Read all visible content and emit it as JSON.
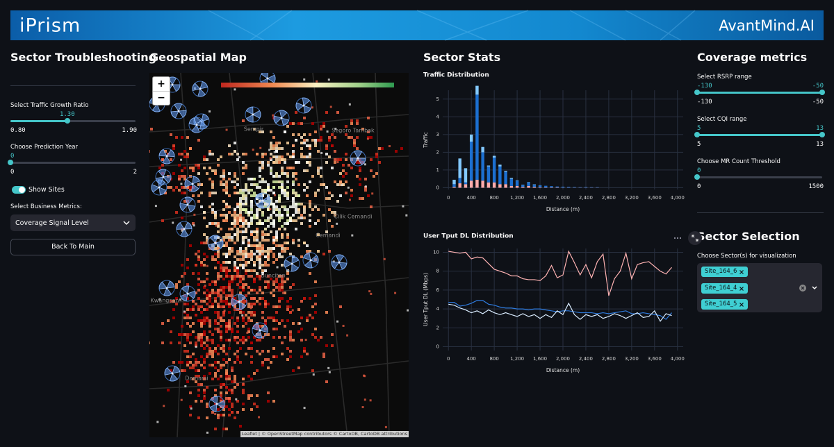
{
  "header": {
    "logo": "iPrism",
    "brand": "AvantMind.AI"
  },
  "sidebar": {
    "title": "Sector Troubleshooting",
    "growth_slider": {
      "label": "Select Traffic Growth Ratio",
      "value": "1.30",
      "min": "0.80",
      "max": "1.90"
    },
    "year_slider": {
      "label": "Choose Prediction Year",
      "value": 0,
      "min": 0,
      "max": 2
    },
    "toggle": {
      "label": "Show Sites",
      "on": true
    },
    "metrics": {
      "label": "Select Business Metrics:",
      "selected": "Coverage Signal Level"
    },
    "button": "Back To Main"
  },
  "map": {
    "title": "Geospatial Map",
    "zoom_in": "+",
    "zoom_out": "−",
    "places": [
      "Sempir",
      "Segoro Tambak",
      "Cilik Cemandi",
      "Cemandi",
      "Buncitan",
      "Kwangsan",
      "Damarsi"
    ],
    "attribution": "Leaflet | © OpenStreetMap contributors © CartoDB, CartoDB attributions"
  },
  "stats": {
    "title": "Sector Stats"
  },
  "chart_data": [
    {
      "type": "bar",
      "stacked": true,
      "title": "Traffic Distribution",
      "x_label": "Distance (m)",
      "y_label": "Traffic",
      "grid": true,
      "x": [
        100,
        200,
        300,
        400,
        500,
        600,
        700,
        800,
        900,
        1000,
        1100,
        1200,
        1300,
        1400,
        1500,
        1600,
        1700,
        1800,
        1900,
        2000,
        2100,
        2200,
        2300,
        2400,
        2500,
        2600
      ],
      "series": [
        {
          "color": "#ffabab",
          "values": [
            0.05,
            0.25,
            0.2,
            0.4,
            0.45,
            0.4,
            0.3,
            0.3,
            0.2,
            0.2,
            0.1,
            0.1,
            0.05,
            0.1,
            0.05,
            0.03,
            0.02,
            0.02,
            0.02,
            0.01,
            0.01,
            0.01,
            0.01,
            0.01,
            0.01,
            0.01
          ]
        },
        {
          "color": "#1c6fd0",
          "values": [
            0.15,
            0.3,
            0.1,
            2.2,
            4.8,
            1.6,
            0.9,
            1.4,
            1.0,
            0.7,
            0.4,
            0.3,
            0.1,
            0.2,
            0.12,
            0.1,
            0.09,
            0.07,
            0.05,
            0.05,
            0.04,
            0.03,
            0.02,
            0.03,
            0.02,
            0.02
          ]
        },
        {
          "color": "#83c9ff",
          "values": [
            0.25,
            1.1,
            0.8,
            0.4,
            0.5,
            0.3,
            0.05,
            0.1,
            0.1,
            0.05,
            0.05,
            0.02,
            0.02,
            0.02,
            0.02,
            0.01,
            0,
            0,
            0,
            0,
            0,
            0,
            0,
            0,
            0,
            0
          ]
        }
      ],
      "xlim": [
        -100,
        4100
      ],
      "ylim": [
        -0.1,
        5.5
      ],
      "xticks": [
        0,
        400,
        800,
        {
          "value": 1200,
          "label": "1,200"
        },
        {
          "value": 1600,
          "label": "1,600"
        },
        {
          "value": 2000,
          "label": "2,000"
        },
        {
          "value": 2400,
          "label": "2,400"
        },
        {
          "value": 2800,
          "label": "2,800"
        },
        {
          "value": 3200,
          "label": "3,200"
        },
        {
          "value": 3600,
          "label": "3,600"
        },
        {
          "value": 4000,
          "label": "4,000"
        }
      ],
      "yticks": [
        0,
        1,
        2,
        3,
        4,
        5
      ]
    },
    {
      "type": "line",
      "title": "User Tput DL Distribution",
      "x_label": "Distance (m)",
      "y_label": "User Tput DL (Mbps)",
      "grid": true,
      "x": [
        0,
        100,
        200,
        300,
        400,
        500,
        600,
        700,
        800,
        900,
        1000,
        1100,
        1200,
        1300,
        1400,
        1500,
        1600,
        1700,
        1800,
        1900,
        2000,
        2100,
        2200,
        2300,
        2400,
        2500,
        2600,
        2700,
        2800,
        2900,
        3000,
        3100,
        3200,
        3300,
        3400,
        3500,
        3600,
        3700,
        3800,
        3900
      ],
      "series": [
        {
          "color": "#ffb3b3",
          "values": [
            10.1,
            10.0,
            9.9,
            10.0,
            9.3,
            9.5,
            9.4,
            8.8,
            8.2,
            8.0,
            7.8,
            7.5,
            7.5,
            7.2,
            7.1,
            7.1,
            7.0,
            7.5,
            8.6,
            7.3,
            7.6,
            10.1,
            8.9,
            7.6,
            8.7,
            7.3,
            9.0,
            9.8,
            5.4,
            7.2,
            8.0,
            9.9,
            7.2,
            8.7,
            8.9,
            9.0,
            8.5,
            8.0,
            7.7,
            8.4
          ]
        },
        {
          "color": "#2f7ce0",
          "values": [
            4.7,
            4.7,
            4.3,
            4.4,
            4.6,
            4.9,
            4.9,
            4.5,
            4.4,
            4.2,
            4.1,
            4.1,
            4.0,
            4.0,
            3.9,
            4.0,
            4.0,
            3.9,
            3.8,
            3.7,
            3.8,
            3.8,
            3.7,
            3.6,
            3.6,
            3.6,
            3.5,
            3.6,
            3.5,
            3.6,
            3.7,
            3.8,
            3.5,
            3.5,
            3.6,
            3.5,
            3.4,
            3.3,
            2.9,
            3.6
          ]
        },
        {
          "color": "#d9ecff",
          "values": [
            4.5,
            4.4,
            4.1,
            3.9,
            3.6,
            3.8,
            3.5,
            3.9,
            3.6,
            3.4,
            3.6,
            3.4,
            3.2,
            3.5,
            3.2,
            3.4,
            3.0,
            3.4,
            3.1,
            3.8,
            3.4,
            4.6,
            3.4,
            2.9,
            3.4,
            3.2,
            3.4,
            3.0,
            3.2,
            3.5,
            3.3,
            3.0,
            3.3,
            3.6,
            3.1,
            3.2,
            3.8,
            2.7,
            3.5,
            3.3
          ]
        }
      ],
      "xlim": [
        -100,
        4100
      ],
      "ylim": [
        -0.4,
        10.4
      ],
      "xticks": [
        0,
        400,
        800,
        {
          "value": 1200,
          "label": "1,200"
        },
        {
          "value": 1600,
          "label": "1,600"
        },
        {
          "value": 2000,
          "label": "2,000"
        },
        {
          "value": 2400,
          "label": "2,400"
        },
        {
          "value": 2800,
          "label": "2,800"
        },
        {
          "value": 3200,
          "label": "3,200"
        },
        {
          "value": 3600,
          "label": "3,600"
        },
        {
          "value": 4000,
          "label": "4,000"
        }
      ],
      "yticks": [
        0,
        2,
        4,
        6,
        8,
        10
      ]
    }
  ],
  "coverage": {
    "title": "Coverage metrics",
    "rsrp": {
      "label": "Select RSRP range",
      "value": [
        -130,
        -50
      ],
      "min": -130,
      "max": -50
    },
    "cqi": {
      "label": "Select CQI range",
      "value": [
        5,
        13
      ],
      "min": 5,
      "max": 13
    },
    "mr": {
      "label": "Choose MR Count Threshold",
      "value": 0,
      "min": 0,
      "max": 1500
    }
  },
  "sector_selection": {
    "title": "Sector Selection",
    "label": "Choose Sector(s) for visualization",
    "selected": [
      "Site_164_6",
      "Site_164_4",
      "Site_164_5"
    ]
  }
}
